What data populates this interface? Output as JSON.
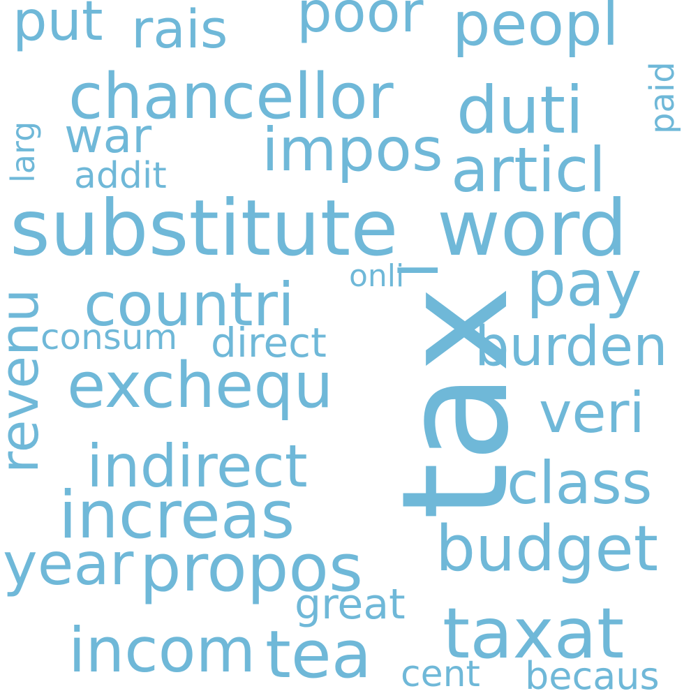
{
  "word_color": "#6fb8d8",
  "background_color": "#ffffff",
  "words": {
    "tax": "tax",
    "substitute_word": "substitute_word",
    "chancellor": "chancellor",
    "exchequ": "exchequ",
    "countri": "countri",
    "revenu": "revenu",
    "increas": "increas",
    "indirect": "indirect",
    "propos": "propos",
    "budget": "budget",
    "taxat": "taxat",
    "incom": "incom",
    "tea": "tea",
    "peopl": "peopl",
    "duti": "duti",
    "articl": "articl",
    "impos": "impos",
    "rais": "rais",
    "poor": "poor",
    "put": "put",
    "war": "war",
    "pay": "pay",
    "burden": "burden",
    "veri": "veri",
    "class": "class",
    "year": "year",
    "great": "great",
    "direct": "direct",
    "consum": "consum",
    "addit": "addit",
    "onli": "onli",
    "larg": "larg",
    "paid": "paid",
    "cent": "cent",
    "becaus": "becaus"
  }
}
